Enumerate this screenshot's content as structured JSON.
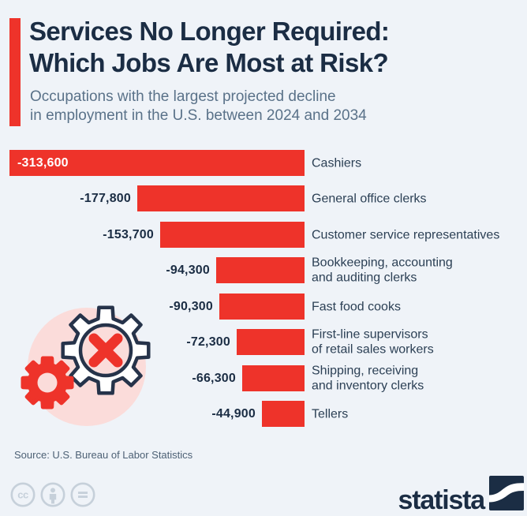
{
  "header": {
    "title_line1": "Services No Longer Required:",
    "title_line2": "Which Jobs Are Most at Risk?",
    "subtitle_line1": "Occupations with the largest projected decline",
    "subtitle_line2": "in employment in the U.S. between 2024 and 2034"
  },
  "chart_data": {
    "type": "bar",
    "orientation": "horizontal",
    "title": "Services No Longer Required: Which Jobs Are Most at Risk?",
    "subtitle": "Occupations with the largest projected decline in employment in the U.S. between 2024 and 2034",
    "value_axis": {
      "min": -313600,
      "max": 0,
      "gridlines": false,
      "axis_labels_visible": false
    },
    "bar_color": "#ee332a",
    "rows": [
      {
        "category": "Cashiers",
        "category_lines": [
          "Cashiers"
        ],
        "value": -313600,
        "value_label": "-313,600",
        "value_label_inside": true
      },
      {
        "category": "General office clerks",
        "category_lines": [
          "General office clerks"
        ],
        "value": -177800,
        "value_label": "-177,800",
        "value_label_inside": false
      },
      {
        "category": "Customer service representatives",
        "category_lines": [
          "Customer service representatives"
        ],
        "value": -153700,
        "value_label": "-153,700",
        "value_label_inside": false
      },
      {
        "category": "Bookkeeping, accounting and auditing clerks",
        "category_lines": [
          "Bookkeeping, accounting",
          "and auditing clerks"
        ],
        "value": -94300,
        "value_label": "-94,300",
        "value_label_inside": false
      },
      {
        "category": "Fast food cooks",
        "category_lines": [
          "Fast food cooks"
        ],
        "value": -90300,
        "value_label": "-90,300",
        "value_label_inside": false
      },
      {
        "category": "First-line supervisors of retail sales workers",
        "category_lines": [
          "First-line supervisors",
          "of retail sales workers"
        ],
        "value": -72300,
        "value_label": "-72,300",
        "value_label_inside": false
      },
      {
        "category": "Shipping, receiving and inventory clerks",
        "category_lines": [
          "Shipping, receiving",
          "and inventory clerks"
        ],
        "value": -66300,
        "value_label": "-66,300",
        "value_label_inside": false
      },
      {
        "category": "Tellers",
        "category_lines": [
          "Tellers"
        ],
        "value": -44900,
        "value_label": "-44,900",
        "value_label_inside": false
      }
    ]
  },
  "footer": {
    "source": "Source: U.S. Bureau of Labor Statistics",
    "license_icons": [
      {
        "name": "cc-icon",
        "glyph": "cc"
      },
      {
        "name": "attribution-icon"
      },
      {
        "name": "no-derivatives-icon"
      }
    ],
    "brand_text": "statista"
  },
  "colors": {
    "background": "#eff3f8",
    "bar-red": "#ee332a",
    "navy": "#1b2d44",
    "label": "#2c4055",
    "subtitle": "#5a7289",
    "pink": "#fbdcda",
    "outline": "#26334a",
    "icon-gray": "#c6d0da",
    "source-text": "#4d6175"
  }
}
